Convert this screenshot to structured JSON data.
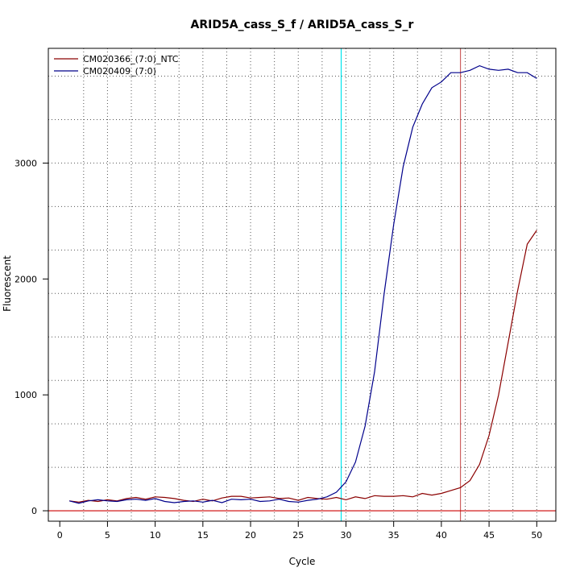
{
  "chart_data": {
    "type": "line",
    "title": "ARID5A_cass_S_f / ARID5A_cass_S_r",
    "xlabel": "Cycle",
    "ylabel": "Fluorescent",
    "xlim": [
      -1.2,
      52
    ],
    "ylim": [
      -90,
      3990
    ],
    "x_ticks": [
      0,
      5,
      10,
      15,
      20,
      25,
      30,
      35,
      40,
      45,
      50
    ],
    "y_ticks": [
      0,
      1000,
      2000,
      3000
    ],
    "grid": true,
    "legend_position": "top-left",
    "threshold_y": 0,
    "threshold_color": "#cc0000",
    "vlines": [
      {
        "x": 29.5,
        "color": "#00e5ee"
      },
      {
        "x": 42,
        "color": "#cd6060"
      }
    ],
    "x": [
      1,
      2,
      3,
      4,
      5,
      6,
      7,
      8,
      9,
      10,
      11,
      12,
      13,
      14,
      15,
      16,
      17,
      18,
      19,
      20,
      21,
      22,
      23,
      24,
      25,
      26,
      27,
      28,
      29,
      30,
      31,
      32,
      33,
      34,
      35,
      36,
      37,
      38,
      39,
      40,
      41,
      42,
      43,
      44,
      45,
      46,
      47,
      48,
      49,
      50
    ],
    "series": [
      {
        "name": "CM020366_(7:0)_NTC",
        "color": "#8b0000",
        "values": [
          85,
          75,
          90,
          80,
          95,
          85,
          105,
          115,
          100,
          120,
          115,
          105,
          90,
          80,
          100,
          85,
          110,
          125,
          125,
          110,
          115,
          120,
          105,
          110,
          90,
          115,
          105,
          100,
          115,
          95,
          120,
          105,
          130,
          125,
          125,
          130,
          120,
          150,
          135,
          150,
          175,
          200,
          260,
          400,
          650,
          1000,
          1450,
          1900,
          2300,
          2420
        ]
      },
      {
        "name": "CM020409_(7:0)",
        "color": "#00008b",
        "values": [
          85,
          65,
          85,
          95,
          85,
          80,
          95,
          100,
          90,
          105,
          80,
          70,
          80,
          85,
          75,
          90,
          70,
          100,
          95,
          100,
          80,
          85,
          100,
          80,
          75,
          90,
          100,
          120,
          160,
          250,
          420,
          730,
          1200,
          1870,
          2470,
          2970,
          3310,
          3510,
          3650,
          3700,
          3780,
          3780,
          3800,
          3840,
          3810,
          3800,
          3810,
          3780,
          3780,
          3730
        ]
      }
    ]
  }
}
